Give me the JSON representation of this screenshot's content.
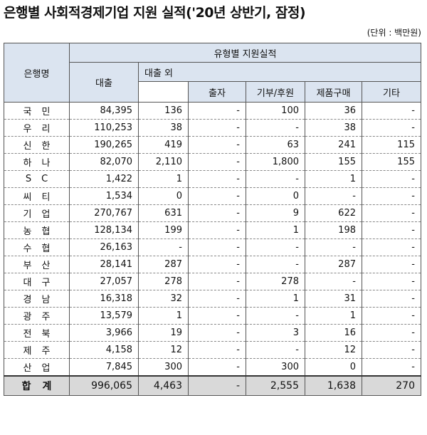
{
  "title": "은행별 사회적경제기업 지원 실적('20년 상반기, 잠정)",
  "unit": "(단위 : 백만원)",
  "headers": {
    "bank": "은행명",
    "support": "유형별 지원실적",
    "loan": "대출",
    "non_loan": "대출 외",
    "investment": "출자",
    "donation": "기부/후원",
    "purchase": "제품구매",
    "other": "기타"
  },
  "rows": [
    {
      "bank": "국민",
      "loan": "84,395",
      "non_loan": "136",
      "investment": "-",
      "donation": "100",
      "purchase": "36",
      "other": "-"
    },
    {
      "bank": "우리",
      "loan": "110,253",
      "non_loan": "38",
      "investment": "-",
      "donation": "-",
      "purchase": "38",
      "other": "-"
    },
    {
      "bank": "신한",
      "loan": "190,265",
      "non_loan": "419",
      "investment": "-",
      "donation": "63",
      "purchase": "241",
      "other": "115"
    },
    {
      "bank": "하나",
      "loan": "82,070",
      "non_loan": "2,110",
      "investment": "-",
      "donation": "1,800",
      "purchase": "155",
      "other": "155"
    },
    {
      "bank": "SC",
      "loan": "1,422",
      "non_loan": "1",
      "investment": "-",
      "donation": "-",
      "purchase": "1",
      "other": "-"
    },
    {
      "bank": "씨티",
      "loan": "1,534",
      "non_loan": "0",
      "investment": "-",
      "donation": "0",
      "purchase": "-",
      "other": "-"
    },
    {
      "bank": "기업",
      "loan": "270,767",
      "non_loan": "631",
      "investment": "-",
      "donation": "9",
      "purchase": "622",
      "other": "-"
    },
    {
      "bank": "농협",
      "loan": "128,134",
      "non_loan": "199",
      "investment": "-",
      "donation": "1",
      "purchase": "198",
      "other": "-"
    },
    {
      "bank": "수협",
      "loan": "26,163",
      "non_loan": "-",
      "investment": "-",
      "donation": "-",
      "purchase": "-",
      "other": "-"
    },
    {
      "bank": "부산",
      "loan": "28,141",
      "non_loan": "287",
      "investment": "-",
      "donation": "-",
      "purchase": "287",
      "other": "-"
    },
    {
      "bank": "대구",
      "loan": "27,057",
      "non_loan": "278",
      "investment": "-",
      "donation": "278",
      "purchase": "-",
      "other": "-"
    },
    {
      "bank": "경남",
      "loan": "16,318",
      "non_loan": "32",
      "investment": "-",
      "donation": "1",
      "purchase": "31",
      "other": "-"
    },
    {
      "bank": "광주",
      "loan": "13,579",
      "non_loan": "1",
      "investment": "-",
      "donation": "-",
      "purchase": "1",
      "other": "-"
    },
    {
      "bank": "전북",
      "loan": "3,966",
      "non_loan": "19",
      "investment": "-",
      "donation": "3",
      "purchase": "16",
      "other": "-"
    },
    {
      "bank": "제주",
      "loan": "4,158",
      "non_loan": "12",
      "investment": "-",
      "donation": "-",
      "purchase": "12",
      "other": "-"
    },
    {
      "bank": "산업",
      "loan": "7,845",
      "non_loan": "300",
      "investment": "-",
      "donation": "300",
      "purchase": "0",
      "other": "-"
    }
  ],
  "total": {
    "bank": "합계",
    "loan": "996,065",
    "non_loan": "4,463",
    "investment": "-",
    "donation": "2,555",
    "purchase": "1,638",
    "other": "270"
  }
}
